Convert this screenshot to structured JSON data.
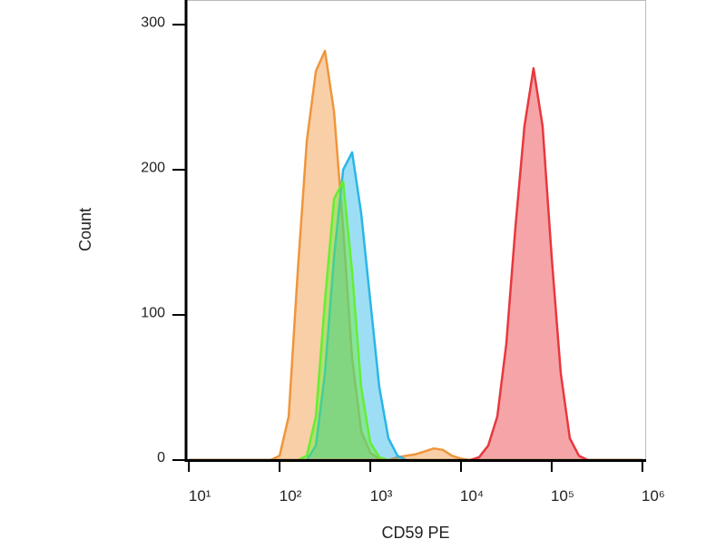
{
  "chart_data": {
    "type": "area",
    "log_x": true,
    "x_label": "CD59 PE",
    "y_label": "Count",
    "x": [
      10,
      12.6,
      15.8,
      20,
      25.1,
      31.6,
      39.8,
      50.1,
      63.1,
      79.4,
      100,
      125.9,
      158.5,
      199.5,
      251.2,
      316.2,
      398.1,
      501.2,
      631,
      794.3,
      1000,
      1259,
      1585,
      1995,
      2512,
      3162,
      3981,
      5012,
      6310,
      7943,
      10000,
      12589,
      15849,
      19953,
      25119,
      31623,
      39811,
      50119,
      63096,
      79433,
      100000,
      125893,
      158489,
      199526,
      251189,
      316228,
      398107,
      501187,
      630957,
      794328,
      1000000
    ],
    "series": [
      {
        "color": "#f0953c",
        "values": [
          0,
          0,
          0,
          0,
          0,
          0,
          0,
          0,
          0,
          0,
          3,
          30,
          130,
          220,
          268,
          282,
          240,
          160,
          70,
          20,
          5,
          1,
          0,
          2,
          3,
          4,
          6,
          8,
          7,
          3,
          1,
          0,
          0,
          0,
          0,
          0,
          0,
          0,
          0,
          0,
          0,
          0,
          0,
          0,
          0,
          0,
          0,
          0,
          0,
          0,
          0
        ]
      },
      {
        "color": "#29b6e8",
        "values": [
          0,
          0,
          0,
          0,
          0,
          0,
          0,
          0,
          0,
          0,
          0,
          0,
          0,
          0,
          10,
          60,
          140,
          200,
          212,
          170,
          110,
          50,
          15,
          3,
          0,
          0,
          0,
          0,
          0,
          0,
          0,
          0,
          0,
          0,
          0,
          0,
          0,
          0,
          0,
          0,
          0,
          0,
          0,
          0,
          0,
          0,
          0,
          0,
          0,
          0,
          0
        ]
      },
      {
        "color": "#66ee33",
        "values": [
          0,
          0,
          0,
          0,
          0,
          0,
          0,
          0,
          0,
          0,
          0,
          0,
          0,
          3,
          30,
          110,
          180,
          192,
          130,
          50,
          12,
          2,
          0,
          0,
          0,
          0,
          0,
          0,
          0,
          0,
          0,
          0,
          0,
          0,
          0,
          0,
          0,
          0,
          0,
          0,
          0,
          0,
          0,
          0,
          0,
          0,
          0,
          0,
          0,
          0,
          0
        ]
      },
      {
        "color": "#e8383d",
        "values": [
          0,
          0,
          0,
          0,
          0,
          0,
          0,
          0,
          0,
          0,
          0,
          0,
          0,
          0,
          0,
          0,
          0,
          0,
          0,
          0,
          0,
          0,
          0,
          0,
          0,
          0,
          0,
          0,
          0,
          0,
          0,
          0,
          2,
          10,
          30,
          80,
          160,
          230,
          270,
          230,
          140,
          60,
          15,
          3,
          0,
          0,
          0,
          0,
          0,
          0,
          0
        ]
      }
    ],
    "xlim": [
      9.3,
      1100000
    ],
    "xticks": [
      {
        "value": 10,
        "label": "10¹"
      },
      {
        "value": 100,
        "label": "10²"
      },
      {
        "value": 1000,
        "label": "10³"
      },
      {
        "value": 10000,
        "label": "10⁴"
      },
      {
        "value": 100000,
        "label": "10⁵"
      },
      {
        "value": 1000000,
        "label": "10⁶"
      }
    ],
    "ylim": [
      0,
      317
    ],
    "yticks": [
      0,
      100,
      200,
      300
    ]
  }
}
